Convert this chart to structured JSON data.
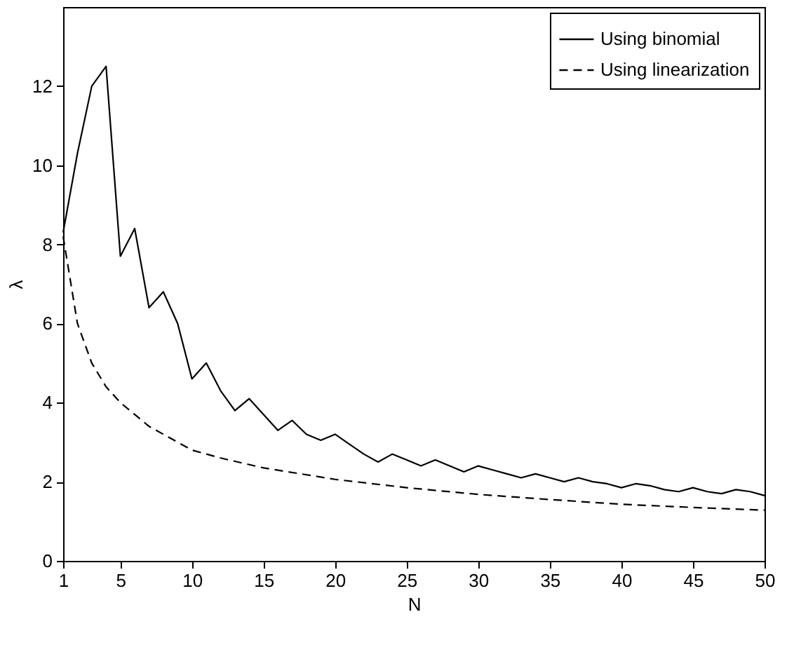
{
  "chart_data": {
    "type": "line",
    "xlabel": "N",
    "ylabel": "λ",
    "xlim": [
      1,
      50
    ],
    "ylim": [
      0,
      14
    ],
    "xticks": [
      1,
      5,
      10,
      15,
      20,
      25,
      30,
      35,
      40,
      45,
      50
    ],
    "yticks": [
      0,
      2,
      4,
      6,
      8,
      10,
      12
    ],
    "grid": false,
    "legend": "top right",
    "series": [
      {
        "name": "Using binomial",
        "color": "#000000",
        "line_style": "solid",
        "x": [
          1,
          2,
          3,
          4,
          5,
          6,
          7,
          8,
          9,
          10,
          11,
          12,
          13,
          14,
          15,
          16,
          17,
          18,
          19,
          20,
          21,
          22,
          23,
          24,
          25,
          26,
          27,
          28,
          29,
          30,
          31,
          32,
          33,
          34,
          35,
          36,
          37,
          38,
          39,
          40,
          41,
          42,
          43,
          44,
          45,
          46,
          47,
          48,
          49,
          50
        ],
        "values": [
          8.3,
          10.3,
          12.0,
          12.5,
          7.7,
          8.4,
          6.4,
          6.8,
          6.0,
          4.6,
          5.0,
          4.3,
          3.8,
          4.1,
          3.7,
          3.3,
          3.55,
          3.2,
          3.05,
          3.2,
          2.95,
          2.7,
          2.5,
          2.7,
          2.55,
          2.4,
          2.55,
          2.4,
          2.25,
          2.4,
          2.3,
          2.2,
          2.1,
          2.2,
          2.1,
          2.0,
          2.1,
          2.0,
          1.95,
          1.85,
          1.95,
          1.9,
          1.8,
          1.75,
          1.85,
          1.75,
          1.7,
          1.8,
          1.75,
          1.65
        ]
      },
      {
        "name": "Using linearization",
        "color": "#000000",
        "line_style": "dashed",
        "x": [
          1,
          2,
          3,
          4,
          5,
          6,
          7,
          8,
          10,
          12,
          15,
          20,
          25,
          30,
          35,
          40,
          45,
          50
        ],
        "values": [
          8.2,
          6.0,
          5.0,
          4.4,
          4.0,
          3.7,
          3.4,
          3.2,
          2.8,
          2.6,
          2.35,
          2.06,
          1.85,
          1.68,
          1.55,
          1.43,
          1.35,
          1.28
        ]
      }
    ]
  }
}
